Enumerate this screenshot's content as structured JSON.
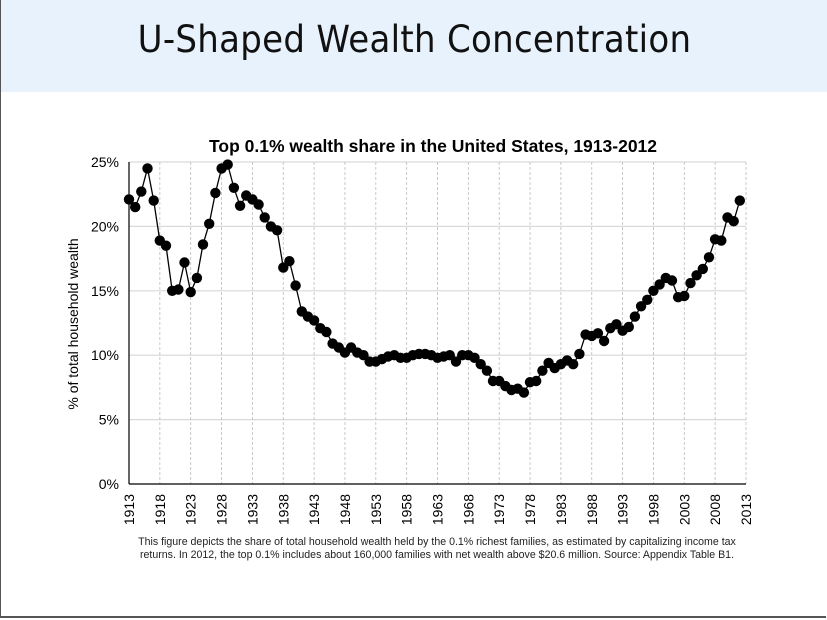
{
  "slide": {
    "title": "U-Shaped Wealth Concentration",
    "caption_line1": "This figure depicts the share of total household wealth held by the 0.1% richest families, as estimated by capitalizing income tax",
    "caption_line2": "returns. In 2012, the top 0.1% includes about 160,000 families with net wealth above $20.6 million. Source: Appendix Table B1."
  },
  "colors": {
    "header_bg": "#e8f2fc",
    "series": "#000000",
    "grid_h": "#d9d9d9",
    "grid_v": "#bdbdbd"
  },
  "chart_data": {
    "type": "line",
    "title": "Top 0.1% wealth share in the United States, 1913-2012",
    "xlabel": "",
    "ylabel": "% of total household wealth",
    "xlim": [
      1913,
      2013
    ],
    "ylim": [
      0,
      25
    ],
    "x_ticks": [
      "1913",
      "1918",
      "1923",
      "1928",
      "1933",
      "1938",
      "1943",
      "1948",
      "1953",
      "1958",
      "1963",
      "1968",
      "1973",
      "1978",
      "1983",
      "1988",
      "1993",
      "1998",
      "2003",
      "2008",
      "2013"
    ],
    "y_ticks": [
      "0%",
      "5%",
      "10%",
      "15%",
      "20%",
      "25%"
    ],
    "grid": true,
    "legend": "none",
    "markers": "filled-circle",
    "series": [
      {
        "name": "Top 0.1% wealth share",
        "x": [
          1913,
          1914,
          1915,
          1916,
          1917,
          1918,
          1919,
          1920,
          1921,
          1922,
          1923,
          1924,
          1925,
          1926,
          1927,
          1928,
          1929,
          1930,
          1931,
          1932,
          1933,
          1934,
          1935,
          1936,
          1937,
          1938,
          1939,
          1940,
          1941,
          1942,
          1943,
          1944,
          1945,
          1946,
          1947,
          1948,
          1949,
          1950,
          1951,
          1952,
          1953,
          1954,
          1955,
          1956,
          1957,
          1958,
          1959,
          1960,
          1961,
          1962,
          1963,
          1964,
          1965,
          1966,
          1967,
          1968,
          1969,
          1970,
          1971,
          1972,
          1973,
          1974,
          1975,
          1976,
          1977,
          1978,
          1979,
          1980,
          1981,
          1982,
          1983,
          1984,
          1985,
          1986,
          1987,
          1988,
          1989,
          1990,
          1991,
          1992,
          1993,
          1994,
          1995,
          1996,
          1997,
          1998,
          1999,
          2000,
          2001,
          2002,
          2003,
          2004,
          2005,
          2006,
          2007,
          2008,
          2009,
          2010,
          2011,
          2012
        ],
        "values": [
          22.1,
          21.5,
          22.7,
          24.5,
          22.0,
          18.9,
          18.5,
          15.0,
          15.1,
          17.2,
          14.9,
          16.0,
          18.6,
          20.2,
          22.6,
          24.5,
          24.8,
          23.0,
          21.6,
          22.4,
          22.1,
          21.7,
          20.7,
          20.0,
          19.7,
          16.8,
          17.3,
          15.4,
          13.4,
          13.0,
          12.7,
          12.1,
          11.8,
          10.9,
          10.6,
          10.2,
          10.6,
          10.2,
          10.0,
          9.5,
          9.5,
          9.7,
          9.9,
          10.0,
          9.8,
          9.8,
          10.0,
          10.1,
          10.1,
          10.0,
          9.8,
          9.9,
          10.0,
          9.5,
          10.0,
          10.0,
          9.8,
          9.3,
          8.8,
          8.0,
          8.0,
          7.6,
          7.3,
          7.4,
          7.1,
          7.9,
          8.0,
          8.8,
          9.4,
          9.0,
          9.3,
          9.6,
          9.3,
          10.1,
          11.6,
          11.5,
          11.7,
          11.1,
          12.1,
          12.4,
          11.9,
          12.2,
          13.0,
          13.8,
          14.3,
          15.0,
          15.5,
          16.0,
          15.8,
          14.5,
          14.6,
          15.6,
          16.2,
          16.7,
          17.6,
          19.0,
          18.9,
          20.7,
          20.4,
          22.0
        ]
      }
    ]
  }
}
